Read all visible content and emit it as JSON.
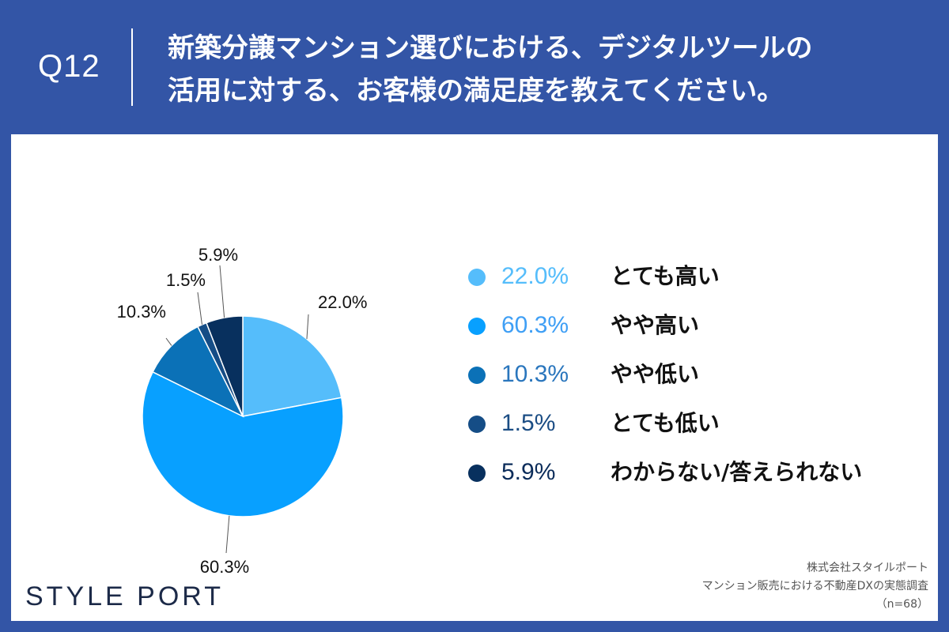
{
  "header": {
    "question_number": "Q12",
    "title_line1": "新築分譲マンション選びにおける、デジタルツールの",
    "title_line2": "活用に対する、お客様の満足度を教えてください。"
  },
  "chart_data": {
    "type": "pie",
    "title": "新築分譲マンション選びにおける、デジタルツールの活用に対する、お客様の満足度を教えてください。",
    "start_angle_deg": 0,
    "direction": "clockwise",
    "slices": [
      {
        "label": "とても高い",
        "value": 22.0,
        "display": "22.0%",
        "color": "#55bdfb",
        "legend_text_color": "#55bdfb"
      },
      {
        "label": "やや高い",
        "value": 60.3,
        "display": "60.3%",
        "color": "#08a0ff",
        "legend_text_color": "#3f9ff5"
      },
      {
        "label": "やや低い",
        "value": 10.3,
        "display": "10.3%",
        "color": "#0b71b7",
        "legend_text_color": "#2a76bd"
      },
      {
        "label": "とても低い",
        "value": 1.5,
        "display": "1.5%",
        "color": "#154d86",
        "legend_text_color": "#1b4d84"
      },
      {
        "label": "わからない/答えられない",
        "value": 5.9,
        "display": "5.9%",
        "color": "#08305e",
        "legend_text_color": "#0b2c5a"
      }
    ],
    "legend_position": "right"
  },
  "footer": {
    "brand": "STYLE PORT",
    "source_company": "株式会社スタイルポート",
    "source_survey": "マンション販売における不動産DXの実態調査",
    "sample_size": "（n=68）"
  }
}
